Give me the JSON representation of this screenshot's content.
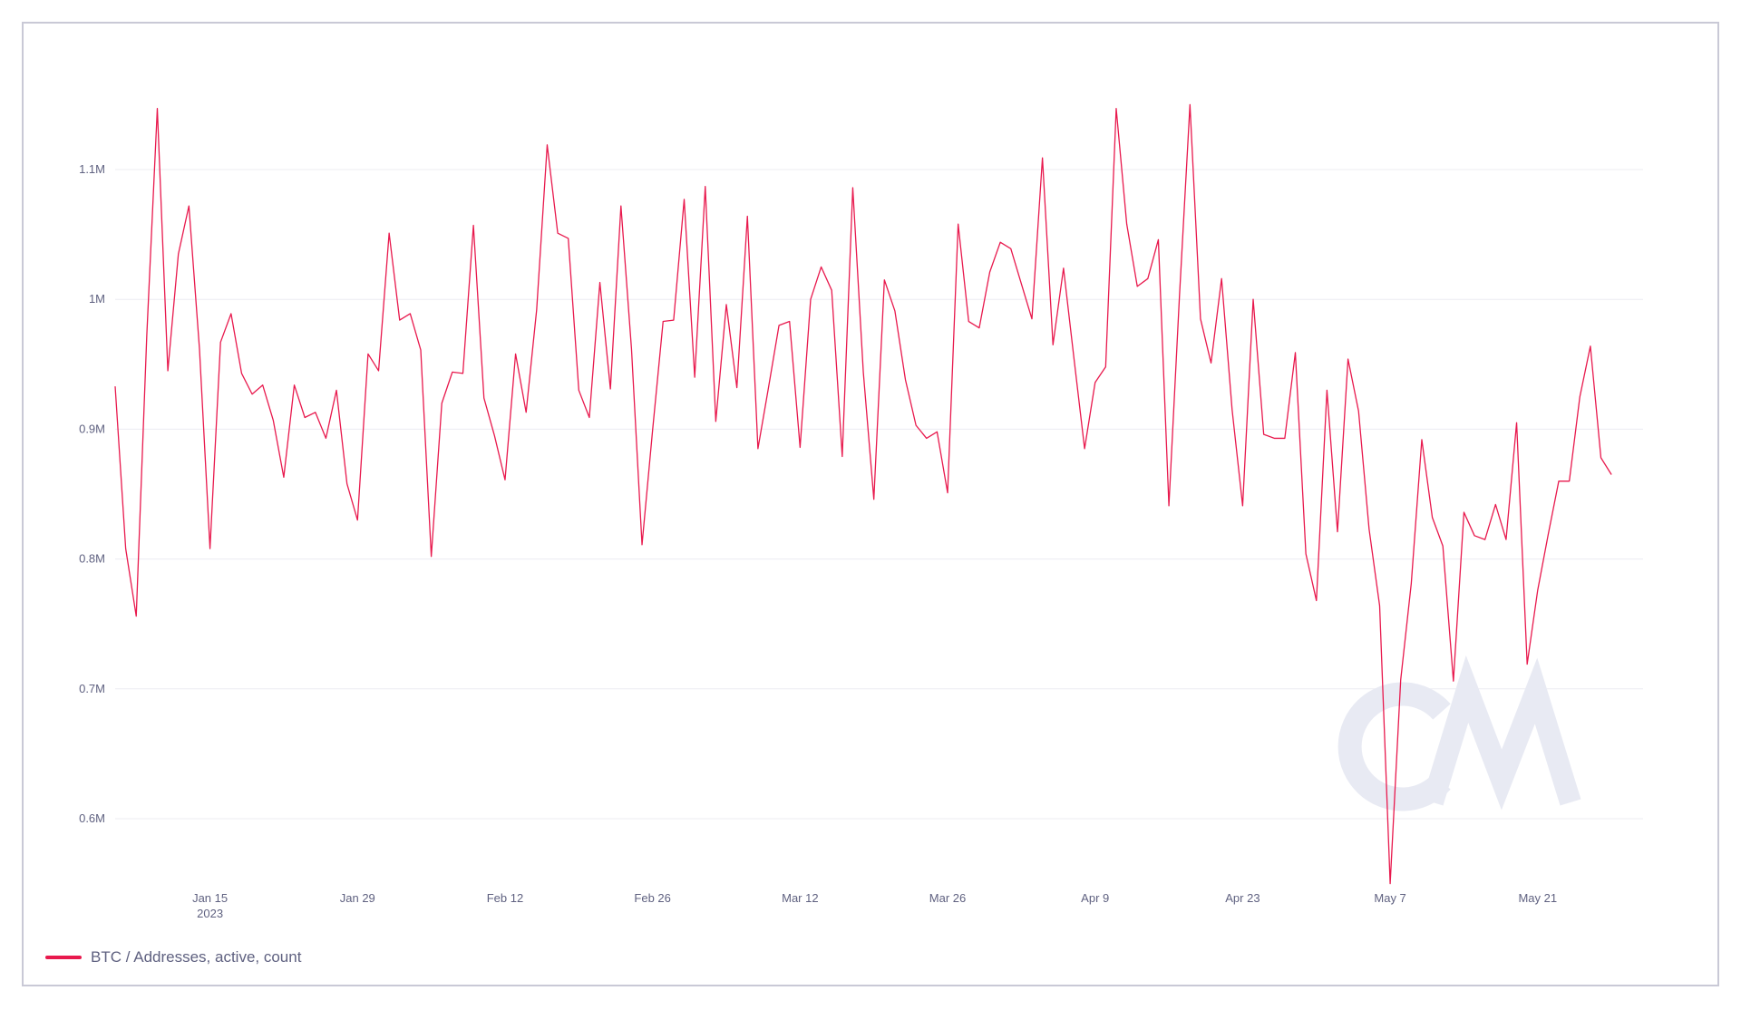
{
  "chart_data": {
    "type": "line",
    "x_start": "2023-01-06",
    "x_end": "2023-05-31",
    "x_ticks": [
      {
        "date": "2023-01-15",
        "label": "Jan 15",
        "sublabel": "2023"
      },
      {
        "date": "2023-01-29",
        "label": "Jan 29"
      },
      {
        "date": "2023-02-12",
        "label": "Feb 12"
      },
      {
        "date": "2023-02-26",
        "label": "Feb 26"
      },
      {
        "date": "2023-03-12",
        "label": "Mar 12"
      },
      {
        "date": "2023-03-26",
        "label": "Mar 26"
      },
      {
        "date": "2023-04-09",
        "label": "Apr 9"
      },
      {
        "date": "2023-04-23",
        "label": "Apr 23"
      },
      {
        "date": "2023-05-07",
        "label": "May 7"
      },
      {
        "date": "2023-05-21",
        "label": "May 21"
      }
    ],
    "y_ticks": [
      {
        "value": 600000,
        "label": "0.6M"
      },
      {
        "value": 700000,
        "label": "0.7M"
      },
      {
        "value": 800000,
        "label": "0.8M"
      },
      {
        "value": 900000,
        "label": "0.9M"
      },
      {
        "value": 1000000,
        "label": "1M"
      },
      {
        "value": 1100000,
        "label": "1.1M"
      }
    ],
    "ylim": [
      550000,
      1180000
    ],
    "grid": true,
    "legend_position": "bottom-left",
    "series": [
      {
        "name": "BTC / Addresses, active, count",
        "color": "#e8194d",
        "values": [
          933000,
          808000,
          756000,
          972000,
          1147000,
          945000,
          1035000,
          1072000,
          962000,
          808000,
          967000,
          989000,
          943000,
          927000,
          934000,
          907000,
          863000,
          934000,
          909000,
          913000,
          893000,
          930000,
          858000,
          830000,
          958000,
          945000,
          1051000,
          984000,
          989000,
          961000,
          802000,
          920000,
          944000,
          943000,
          1057000,
          924000,
          895000,
          861000,
          958000,
          913000,
          992000,
          1119000,
          1051000,
          1047000,
          930000,
          909000,
          1013000,
          931000,
          1072000,
          962000,
          811000,
          899000,
          983000,
          984000,
          1077000,
          940000,
          1087000,
          906000,
          996000,
          932000,
          1064000,
          885000,
          932000,
          980000,
          983000,
          886000,
          1000000,
          1025000,
          1007000,
          879000,
          1086000,
          944000,
          846000,
          1015000,
          991000,
          938000,
          903000,
          893000,
          898000,
          851000,
          1058000,
          983000,
          978000,
          1021000,
          1044000,
          1039000,
          1012000,
          985000,
          1109000,
          965000,
          1024000,
          954000,
          885000,
          936000,
          948000,
          1147000,
          1058000,
          1010000,
          1016000,
          1046000,
          841000,
          1002000,
          1150000,
          985000,
          951000,
          1016000,
          915000,
          841000,
          1000000,
          896000,
          893000,
          893000,
          959000,
          804000,
          768000,
          930000,
          821000,
          954000,
          914000,
          823000,
          764000,
          550000,
          707000,
          781000,
          892000,
          832000,
          810000,
          706000,
          836000,
          818000,
          815000,
          842000,
          815000,
          905000,
          719000,
          776000,
          819000,
          860000,
          860000,
          925000,
          964000,
          878000,
          865000
        ]
      }
    ],
    "watermark": "CM"
  }
}
